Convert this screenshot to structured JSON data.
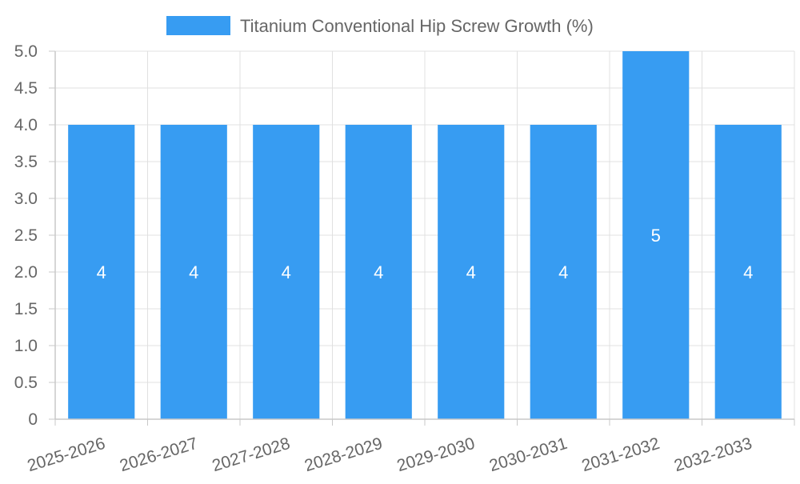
{
  "chart_data": {
    "type": "bar",
    "title": "",
    "xlabel": "",
    "ylabel": "",
    "legend": {
      "position": "top-center",
      "entries": [
        "Titanium Conventional Hip Screw Growth (%)"
      ]
    },
    "categories": [
      "2025-2026",
      "2026-2027",
      "2027-2028",
      "2028-2029",
      "2029-2030",
      "2030-2031",
      "2031-2032",
      "2032-2033"
    ],
    "series": [
      {
        "name": "Titanium Conventional Hip Screw Growth (%)",
        "values": [
          4,
          4,
          4,
          4,
          4,
          4,
          5,
          4
        ],
        "data_labels": [
          "4",
          "4",
          "4",
          "4",
          "4",
          "4",
          "5",
          "4"
        ]
      }
    ],
    "ylim": [
      0,
      5
    ],
    "yticks": [
      "0",
      "0.5",
      "1.0",
      "1.5",
      "2.0",
      "2.5",
      "3.0",
      "3.5",
      "4.0",
      "4.5",
      "5.0"
    ],
    "grid": true,
    "colors": {
      "bar": "#379cf2",
      "grid": "#e0e0e0",
      "axis": "#c8c8c8",
      "tick_text": "#666666",
      "data_label": "#ffffff",
      "background": "#ffffff"
    }
  }
}
